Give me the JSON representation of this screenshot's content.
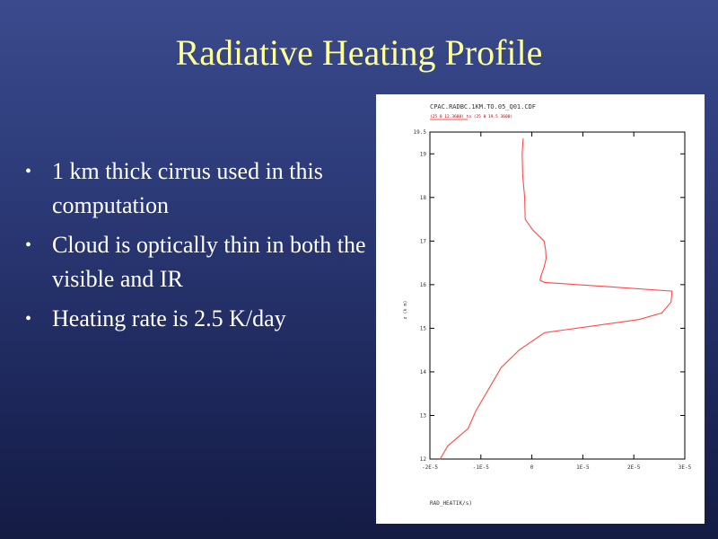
{
  "slide": {
    "title": "Radiative Heating Profile",
    "bullets": [
      "1 km thick cirrus used in this computation",
      "Cloud is optically thin in both the visible and IR",
      "Heating rate is 2.5 K/day"
    ]
  },
  "chart_data": {
    "type": "line",
    "title": "CPAC.RADBC.1KM.TO.05_Q01.CDF",
    "subtitle": "(25 0 12.3600) to (25 0 19.5 3600)",
    "xlabel": "RAD_HEATIK/s)",
    "ylabel": "z (k m)",
    "xlim": [
      -2e-05,
      3e-05
    ],
    "ylim": [
      12,
      19.5
    ],
    "x_ticks": [
      "-2E-5",
      "-1E-5",
      "0",
      "1E-5",
      "2E-5",
      "3E-5"
    ],
    "y_ticks": [
      "19.5",
      "19",
      "18",
      "17",
      "16",
      "15",
      "14",
      "13",
      "12"
    ],
    "line_color": "#ff4a4a",
    "series": [
      {
        "x": [
          -1.7e-06,
          -1.9e-06,
          -1.8e-06,
          -1.4e-06,
          -1.3e-06,
          2e-07,
          2.4e-06,
          2.7e-06,
          2.8e-06,
          2.4e-06,
          1.8e-06,
          1.6e-06,
          2.5e-06,
          1.55e-05,
          2.75e-05,
          2.73e-05,
          2.55e-05,
          2.1e-05,
          2.5e-06,
          -2.5e-06,
          -6e-06,
          -8.5e-06,
          -1.1e-05,
          -1.25e-05,
          -1.65e-05,
          -1.8e-05
        ],
        "y": [
          19.35,
          19.0,
          18.5,
          18.0,
          17.5,
          17.25,
          17.0,
          16.8,
          16.6,
          16.4,
          16.2,
          16.1,
          16.05,
          15.95,
          15.85,
          15.6,
          15.35,
          15.2,
          14.9,
          14.5,
          14.1,
          13.6,
          13.1,
          12.7,
          12.3,
          12.0
        ]
      }
    ]
  }
}
